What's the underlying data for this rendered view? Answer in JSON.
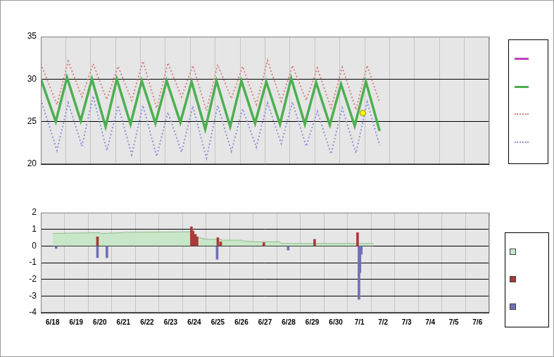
{
  "chart_data": [
    {
      "type": "line",
      "xlim": [
        0,
        18
      ],
      "xticks": [
        {
          "value": 0,
          "label": "6/18"
        },
        {
          "value": 1,
          "label": "6/19"
        },
        {
          "value": 2,
          "label": "6/20"
        },
        {
          "value": 3,
          "label": "6/21"
        },
        {
          "value": 4,
          "label": "6/22"
        },
        {
          "value": 5,
          "label": "6/23"
        },
        {
          "value": 6,
          "label": "6/24"
        },
        {
          "value": 7,
          "label": "6/25"
        },
        {
          "value": 8,
          "label": "6/26"
        },
        {
          "value": 9,
          "label": "6/27"
        },
        {
          "value": 10,
          "label": "6/28"
        },
        {
          "value": 11,
          "label": "6/29"
        },
        {
          "value": 12,
          "label": "6/30"
        },
        {
          "value": 13,
          "label": "7/1"
        },
        {
          "value": 14,
          "label": "7/2"
        },
        {
          "value": 15,
          "label": "7/3"
        },
        {
          "value": 16,
          "label": "7/4"
        },
        {
          "value": 17,
          "label": "7/5"
        },
        {
          "value": 18,
          "label": "7/6"
        }
      ],
      "ylim": [
        20,
        35
      ],
      "yticks": [
        20,
        25,
        30,
        35
      ],
      "grid": true,
      "legend": "right",
      "tick_labels": "y",
      "series": [
        {
          "type": "line",
          "color": "#c040c0",
          "line_style": "solid",
          "x": [],
          "values": []
        },
        {
          "type": "line",
          "color": "#4caf50",
          "line_style": "solid",
          "x": [
            0,
            0.6,
            1.05,
            1.6,
            2.05,
            2.6,
            3.05,
            3.6,
            4.05,
            4.6,
            5.05,
            5.6,
            6.05,
            6.6,
            7.05,
            7.6,
            8.05,
            8.6,
            9.05,
            9.6,
            10.05,
            10.6,
            11.05,
            11.6,
            12.05,
            12.6,
            13.05,
            13.6
          ],
          "values": [
            30.0,
            25.0,
            30.2,
            25.1,
            30.0,
            24.4,
            30.0,
            24.7,
            29.8,
            24.8,
            29.8,
            24.9,
            29.7,
            24.1,
            29.8,
            24.4,
            29.8,
            24.8,
            29.7,
            24.7,
            30.1,
            24.7,
            29.6,
            24.6,
            29.4,
            24.5,
            29.7,
            23.9
          ]
        },
        {
          "type": "line",
          "color": "#d98080",
          "line_style": "dotted",
          "x": [
            0,
            0.65,
            1.1,
            1.65,
            2.1,
            2.65,
            3.1,
            3.65,
            4.1,
            4.65,
            5.1,
            5.65,
            6.1,
            6.65,
            7.1,
            7.65,
            8.1,
            8.65,
            9.1,
            9.65,
            10.1,
            10.65,
            11.1,
            11.65,
            12.1,
            12.65,
            13.1,
            13.6
          ],
          "values": [
            31.8,
            27.0,
            32.1,
            27.9,
            31.8,
            27.6,
            31.5,
            27.5,
            32.1,
            26.6,
            31.9,
            27.9,
            31.6,
            26.3,
            31.7,
            27.7,
            31.5,
            27.0,
            32.2,
            27.4,
            31.6,
            27.5,
            31.3,
            26.6,
            31.4,
            26.4,
            31.6,
            27.2
          ]
        },
        {
          "type": "line",
          "color": "#9090d8",
          "line_style": "dotted",
          "x": [
            0,
            0.65,
            1.1,
            1.65,
            2.1,
            2.65,
            3.1,
            3.65,
            4.1,
            4.65,
            5.1,
            5.65,
            6.1,
            6.65,
            7.1,
            7.65,
            8.1,
            8.65,
            9.1,
            9.65,
            10.1,
            10.65,
            11.1,
            11.65,
            12.1,
            12.65,
            13.1,
            13.6
          ],
          "values": [
            27.6,
            21.6,
            27.2,
            22.1,
            28.0,
            21.6,
            26.9,
            21.1,
            26.9,
            20.9,
            26.1,
            21.4,
            26.8,
            20.7,
            26.9,
            21.5,
            26.5,
            22.0,
            27.2,
            22.4,
            27.3,
            22.1,
            26.2,
            21.2,
            26.6,
            21.3,
            27.3,
            22.2
          ]
        },
        {
          "type": "scatter",
          "color": "#ffff00",
          "marker": "circle",
          "x": [
            12.93
          ],
          "values": [
            26.0
          ]
        }
      ]
    },
    {
      "type": "line",
      "xlim": [
        0,
        18
      ],
      "xticks": [
        {
          "value": 0,
          "label": "6/18"
        },
        {
          "value": 1,
          "label": "6/19"
        },
        {
          "value": 2,
          "label": "6/20"
        },
        {
          "value": 3,
          "label": "6/21"
        },
        {
          "value": 4,
          "label": "6/22"
        },
        {
          "value": 5,
          "label": "6/23"
        },
        {
          "value": 6,
          "label": "6/24"
        },
        {
          "value": 7,
          "label": "6/25"
        },
        {
          "value": 8,
          "label": "6/26"
        },
        {
          "value": 9,
          "label": "6/27"
        },
        {
          "value": 10,
          "label": "6/28"
        },
        {
          "value": 11,
          "label": "6/29"
        },
        {
          "value": 12,
          "label": "6/30"
        },
        {
          "value": 13,
          "label": "7/1"
        },
        {
          "value": 14,
          "label": "7/2"
        },
        {
          "value": 15,
          "label": "7/3"
        },
        {
          "value": 16,
          "label": "7/4"
        },
        {
          "value": 17,
          "label": "7/5"
        },
        {
          "value": 18,
          "label": "7/6"
        }
      ],
      "ylim": [
        -4,
        2
      ],
      "yticks": [
        -4,
        -3,
        -2,
        -1,
        0,
        1,
        2
      ],
      "grid": true,
      "legend": "right",
      "series": [
        {
          "type": "area",
          "color": "#c8e6c8",
          "x": [
            0,
            2.0,
            2.05,
            3.0,
            3.1,
            5.9,
            6.0,
            6.2,
            6.5,
            7.1,
            7.2,
            8.0,
            8.1,
            8.6,
            9.6,
            9.7,
            13.6
          ],
          "values": [
            0.75,
            0.8,
            0.75,
            0.8,
            0.82,
            0.85,
            0.6,
            0.5,
            0.4,
            0.4,
            0.35,
            0.35,
            0.3,
            0.25,
            0.25,
            0.15,
            0.15
          ]
        },
        {
          "type": "bar",
          "color": "#a83a3a",
          "x": [
            1.9,
            5.88,
            5.95,
            6.05,
            6.12,
            7.0,
            7.12,
            8.95,
            11.1,
            12.92
          ],
          "values": [
            0.55,
            1.15,
            0.9,
            0.7,
            0.55,
            0.5,
            0.25,
            0.2,
            0.4,
            0.8
          ]
        },
        {
          "type": "bar",
          "color": "#7070b8",
          "x": [
            0.15,
            1.9,
            2.3,
            6.97,
            9.98,
            12.98,
            13.02,
            13.08
          ],
          "values": [
            -0.15,
            -0.7,
            -0.7,
            -0.8,
            -0.25,
            -3.2,
            -1.6,
            -0.5
          ]
        }
      ]
    }
  ]
}
